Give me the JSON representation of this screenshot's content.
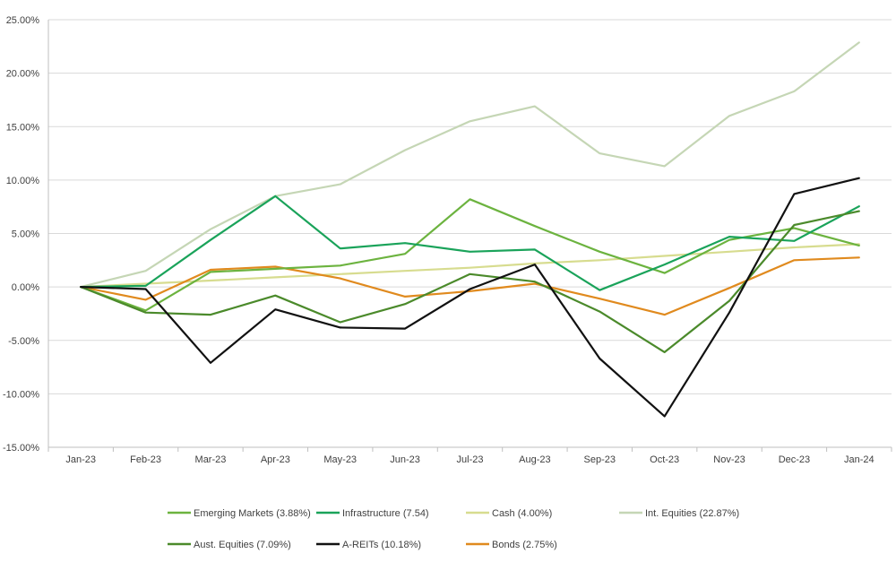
{
  "chart_data": {
    "type": "line",
    "title": "",
    "xlabel": "",
    "ylabel": "",
    "categories": [
      "Jan-23",
      "Feb-23",
      "Mar-23",
      "Apr-23",
      "May-23",
      "Jun-23",
      "Jul-23",
      "Aug-23",
      "Sep-23",
      "Oct-23",
      "Nov-23",
      "Dec-23",
      "Jan-24"
    ],
    "ylim": [
      -15,
      25
    ],
    "yticks": [
      -15,
      -10,
      -5,
      0,
      5,
      10,
      15,
      20,
      25
    ],
    "ytick_labels": [
      "-15.00%",
      "-10.00%",
      "-5.00%",
      "0.00%",
      "5.00%",
      "10.00%",
      "15.00%",
      "20.00%",
      "25.00%"
    ],
    "grid": true,
    "legend_position": "bottom",
    "series": [
      {
        "name": "Int. Equities",
        "legend_label": "Int. Equities (22.87%)",
        "color": "#c5d6b5",
        "values": [
          0,
          1.5,
          5.4,
          8.5,
          9.6,
          12.8,
          15.5,
          16.9,
          12.5,
          11.3,
          16.0,
          18.3,
          22.87
        ]
      },
      {
        "name": "Cash",
        "legend_label": "Cash (4.00%)",
        "color": "#d7dc8f",
        "values": [
          0,
          0.3,
          0.6,
          0.9,
          1.2,
          1.5,
          1.8,
          2.2,
          2.5,
          2.9,
          3.3,
          3.7,
          4.0
        ]
      },
      {
        "name": "Bonds",
        "legend_label": "Bonds (2.75%)",
        "color": "#e08a1e",
        "values": [
          0,
          -1.2,
          1.6,
          1.9,
          0.8,
          -0.9,
          -0.4,
          0.3,
          -1.1,
          -2.6,
          -0.1,
          2.5,
          2.75
        ]
      },
      {
        "name": "Emerging Markets",
        "legend_label": "Emerging Markets (3.88%)",
        "color": "#6cb33f",
        "values": [
          0,
          -2.2,
          1.4,
          1.7,
          2.0,
          3.1,
          8.2,
          5.7,
          3.3,
          1.3,
          4.4,
          5.5,
          3.88
        ]
      },
      {
        "name": "Infrastructure",
        "legend_label": "Infrastructure (7.54)",
        "color": "#1aa35a",
        "values": [
          0,
          0.1,
          4.4,
          8.5,
          3.6,
          4.1,
          3.3,
          3.5,
          -0.3,
          2.1,
          4.7,
          4.3,
          7.54
        ]
      },
      {
        "name": "Aust. Equities",
        "legend_label": "Aust. Equities (7.09%)",
        "color": "#4b8a2b",
        "values": [
          0,
          -2.4,
          -2.6,
          -0.8,
          -3.3,
          -1.6,
          1.2,
          0.5,
          -2.3,
          -6.1,
          -1.3,
          5.8,
          7.09
        ]
      },
      {
        "name": "A-REITs",
        "legend_label": "A-REITs (10.18%)",
        "color": "#111111",
        "values": [
          0,
          -0.2,
          -7.1,
          -2.1,
          -3.8,
          -3.9,
          -0.2,
          2.1,
          -6.7,
          -12.1,
          -2.4,
          8.7,
          10.18
        ]
      }
    ],
    "legend_order": [
      "Emerging Markets",
      "Infrastructure",
      "Cash",
      "Int. Equities",
      "Aust. Equities",
      "A-REITs",
      "Bonds"
    ]
  }
}
